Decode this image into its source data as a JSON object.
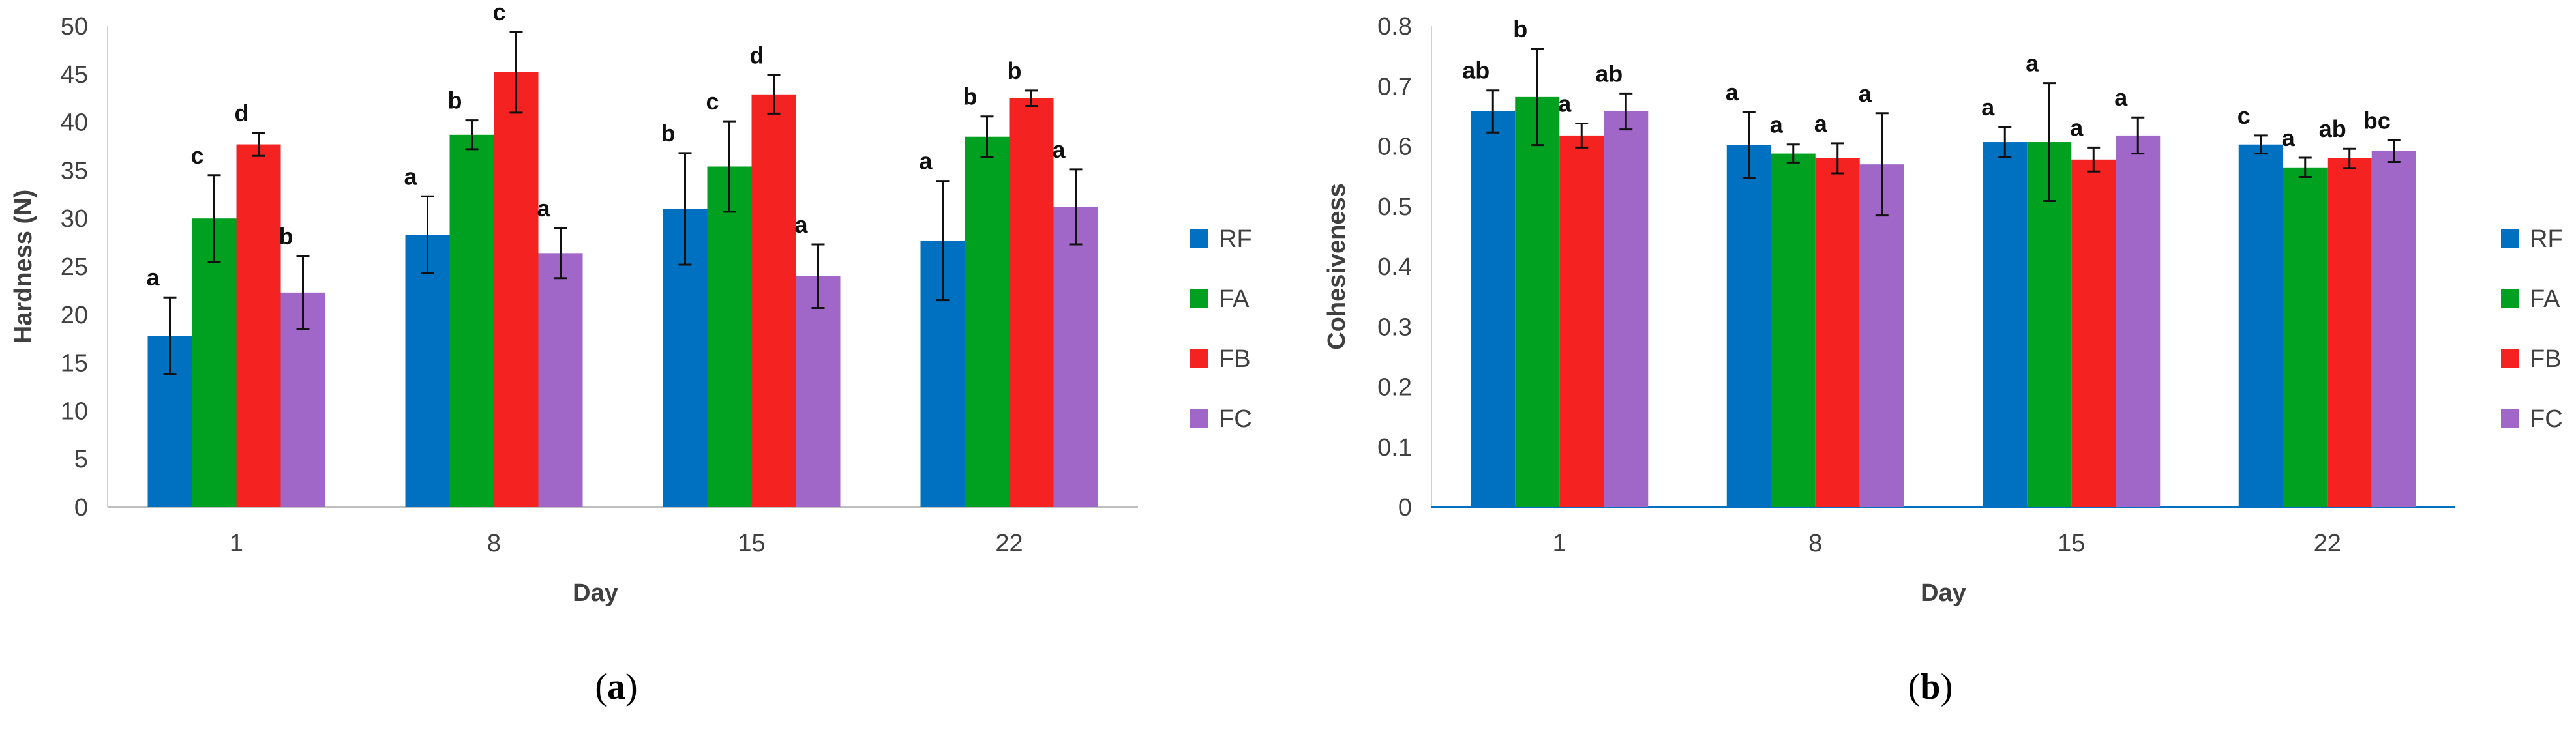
{
  "colors": {
    "RF": "#0070C0",
    "FA": "#00A020",
    "FB": "#F52222",
    "FC": "#A066C8"
  },
  "chart_data": [
    {
      "type": "bar",
      "panel_label": "a",
      "categories": [
        "1",
        "8",
        "15",
        "22"
      ],
      "xlabel": "Day",
      "ylabel": "Hardness (N)",
      "ylim": [
        0,
        50
      ],
      "yticks": [
        "0",
        "5",
        "10",
        "15",
        "20",
        "25",
        "30",
        "35",
        "40",
        "45",
        "50"
      ],
      "legend_position": "right",
      "series": [
        {
          "name": "RF",
          "values": [
            17.8,
            28.3,
            31.0,
            27.7
          ],
          "errors": [
            4.0,
            4.0,
            5.8,
            6.2
          ],
          "letters": [
            "a",
            "a",
            "b",
            "a"
          ]
        },
        {
          "name": "FA",
          "values": [
            30.0,
            38.7,
            35.4,
            38.5
          ],
          "errors": [
            4.5,
            1.5,
            4.7,
            2.1
          ],
          "letters": [
            "c",
            "b",
            "c",
            "b"
          ]
        },
        {
          "name": "FB",
          "values": [
            37.7,
            45.2,
            42.9,
            42.5
          ],
          "errors": [
            1.2,
            4.2,
            2.0,
            0.8
          ],
          "letters": [
            "d",
            "c",
            "d",
            "b"
          ]
        },
        {
          "name": "FC",
          "values": [
            22.3,
            26.4,
            24.0,
            31.2
          ],
          "errors": [
            3.8,
            2.6,
            3.3,
            3.9
          ],
          "letters": [
            "b",
            "a",
            "a",
            "a"
          ]
        }
      ]
    },
    {
      "type": "bar",
      "panel_label": "b",
      "categories": [
        "1",
        "8",
        "15",
        "22"
      ],
      "xlabel": "Day",
      "ylabel": "Cohesiveness",
      "ylim": [
        0,
        0.8
      ],
      "yticks": [
        "0",
        "0.1",
        "0.2",
        "0.3",
        "0.4",
        "0.5",
        "0.6",
        "0.7",
        "0.8"
      ],
      "legend_position": "right",
      "series": [
        {
          "name": "RF",
          "values": [
            0.658,
            0.602,
            0.607,
            0.603
          ],
          "errors": [
            0.035,
            0.055,
            0.025,
            0.015
          ],
          "letters": [
            "ab",
            "a",
            "a",
            "c"
          ]
        },
        {
          "name": "FA",
          "values": [
            0.682,
            0.588,
            0.607,
            0.565
          ],
          "errors": [
            0.08,
            0.015,
            0.098,
            0.016
          ],
          "letters": [
            "b",
            "a",
            "a",
            "a"
          ]
        },
        {
          "name": "FB",
          "values": [
            0.618,
            0.58,
            0.578,
            0.58
          ],
          "errors": [
            0.02,
            0.025,
            0.02,
            0.016
          ],
          "letters": [
            "a",
            "a",
            "a",
            "ab"
          ]
        },
        {
          "name": "FC",
          "values": [
            0.658,
            0.57,
            0.618,
            0.592
          ],
          "errors": [
            0.03,
            0.085,
            0.03,
            0.018
          ],
          "letters": [
            "ab",
            "a",
            "a",
            "bc"
          ]
        }
      ]
    }
  ]
}
